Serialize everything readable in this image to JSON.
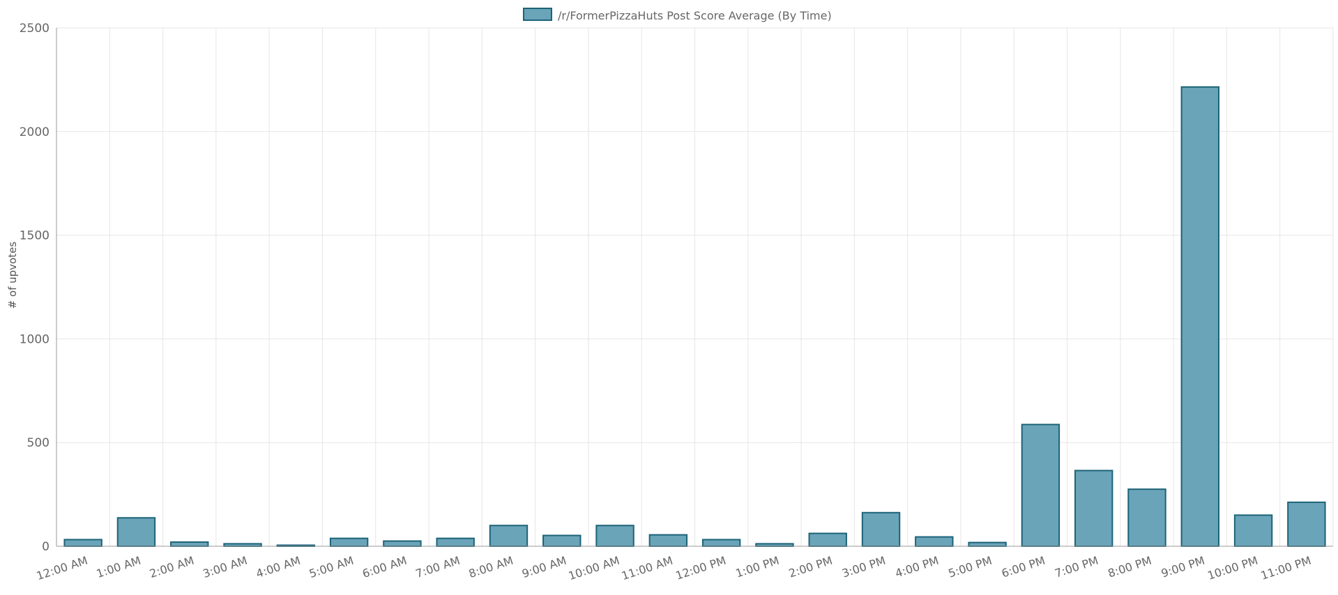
{
  "chart_data": {
    "type": "bar",
    "title": "",
    "xlabel": "",
    "ylabel": "# of upvotes",
    "ylim": [
      0,
      2500
    ],
    "yticks": [
      0,
      500,
      1000,
      1500,
      2000,
      2500
    ],
    "grid": true,
    "legend_position": "top",
    "categories": [
      "12:00 AM",
      "1:00 AM",
      "2:00 AM",
      "3:00 AM",
      "4:00 AM",
      "5:00 AM",
      "6:00 AM",
      "7:00 AM",
      "8:00 AM",
      "9:00 AM",
      "10:00 AM",
      "11:00 AM",
      "12:00 PM",
      "1:00 PM",
      "2:00 PM",
      "3:00 PM",
      "4:00 PM",
      "5:00 PM",
      "6:00 PM",
      "7:00 PM",
      "8:00 PM",
      "9:00 PM",
      "10:00 PM",
      "11:00 PM"
    ],
    "series": [
      {
        "name": "/r/FormerPizzaHuts Post Score Average (By Time)",
        "fill_color": "#6aa4b8",
        "border_color": "#1d6378",
        "values": [
          32,
          137,
          20,
          12,
          5,
          38,
          25,
          38,
          100,
          52,
          100,
          55,
          32,
          12,
          62,
          162,
          45,
          18,
          587,
          365,
          275,
          2215,
          150,
          212
        ]
      }
    ]
  }
}
